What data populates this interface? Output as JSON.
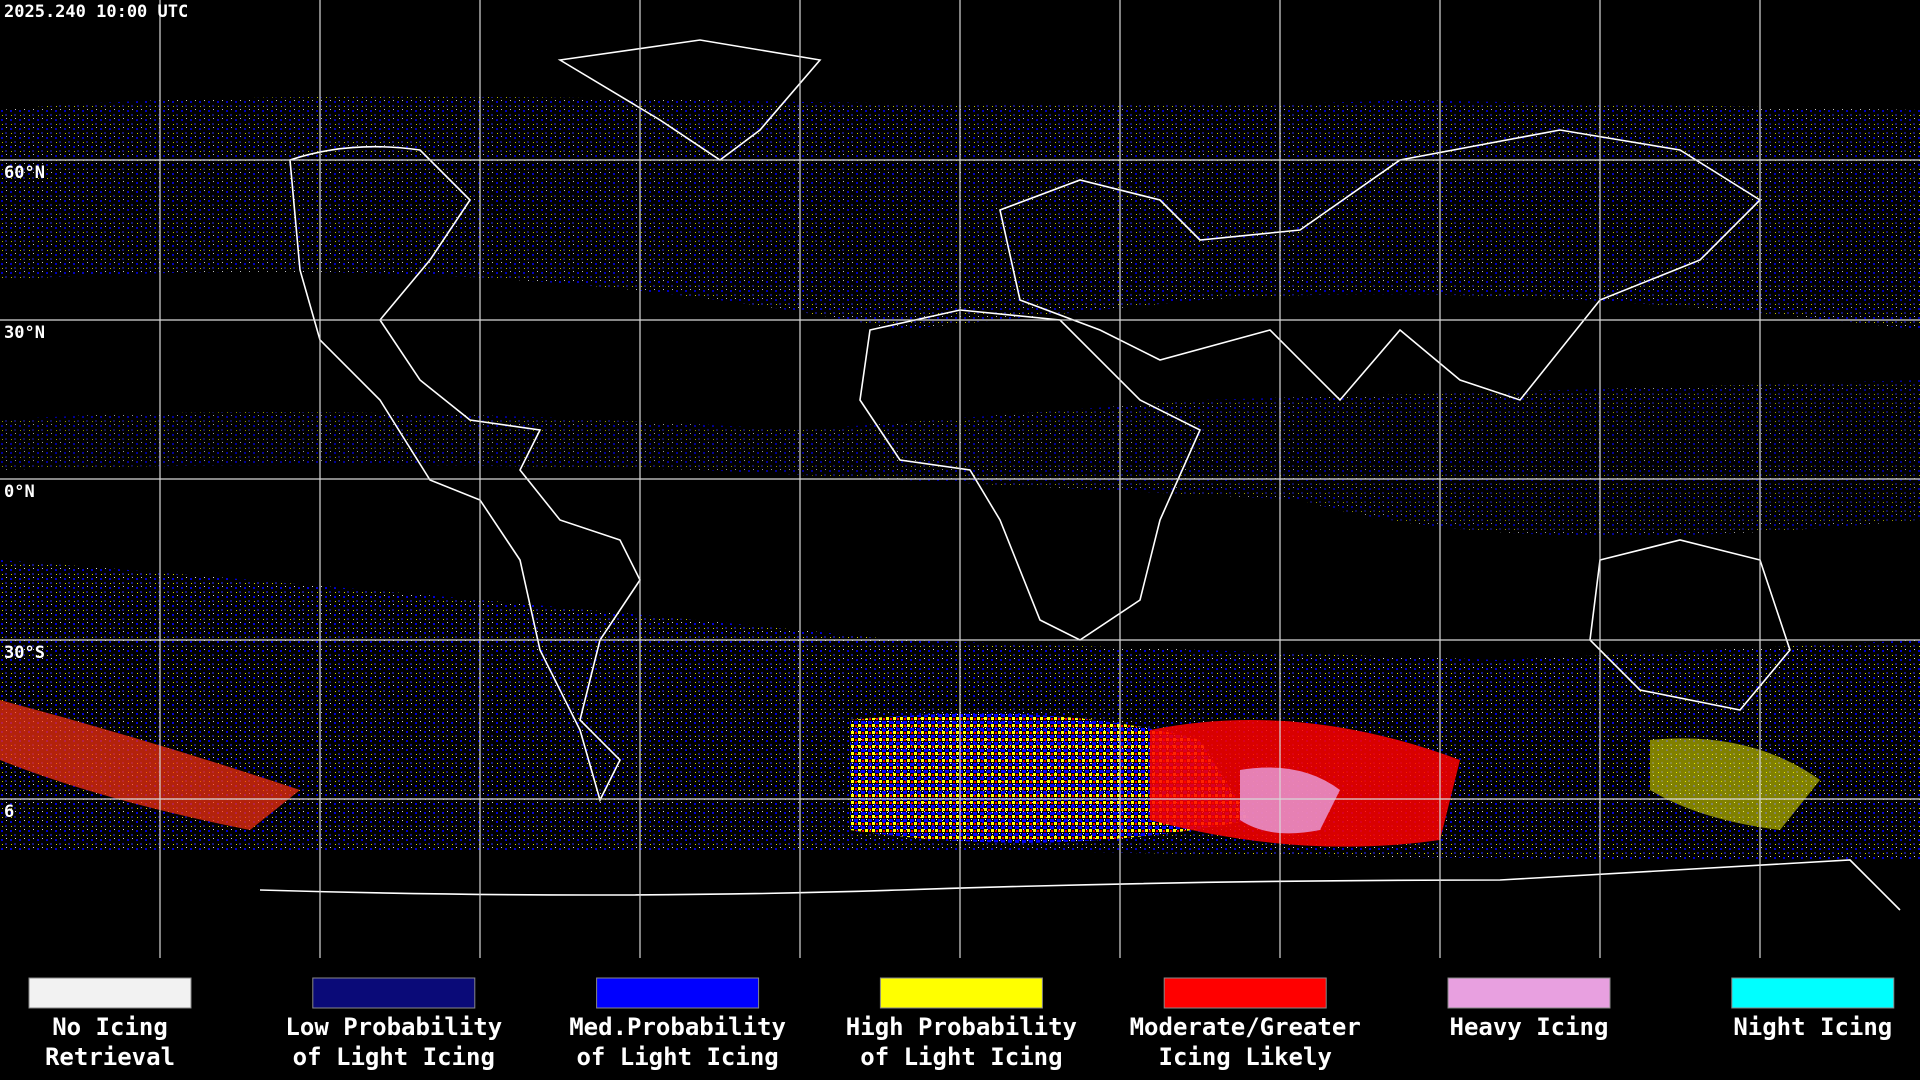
{
  "header": {
    "timestamp": "2025.240 10:00 UTC"
  },
  "latitude_labels": [
    "60°N",
    "30°N",
    "0°N",
    "30°S",
    "6"
  ],
  "legend": [
    {
      "color": "#f2f2f2",
      "lines": [
        "No Icing",
        "Retrieval"
      ]
    },
    {
      "color": "#0a0a78",
      "lines": [
        "Low Probability",
        "of Light Icing"
      ]
    },
    {
      "color": "#0000ff",
      "lines": [
        "Med.Probability",
        "of Light Icing"
      ]
    },
    {
      "color": "#ffff00",
      "lines": [
        "High Probability",
        "of Light Icing"
      ]
    },
    {
      "color": "#ff0000",
      "lines": [
        "Moderate/Greater",
        "Icing Likely"
      ]
    },
    {
      "color": "#e8a0e0",
      "lines": [
        "Heavy Icing"
      ]
    },
    {
      "color": "#00ffff",
      "lines": [
        "Night Icing"
      ]
    }
  ]
}
